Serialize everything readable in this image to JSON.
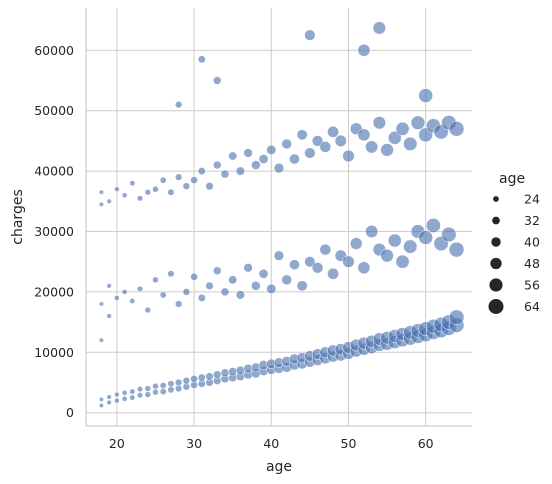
{
  "chart_data": {
    "type": "scatter",
    "title": "",
    "xlabel": "age",
    "ylabel": "charges",
    "xlim": [
      16,
      66
    ],
    "ylim": [
      -2200,
      67000
    ],
    "xticks": [
      20,
      30,
      40,
      50,
      60
    ],
    "yticks": [
      0,
      10000,
      20000,
      30000,
      40000,
      50000,
      60000
    ],
    "grid": true,
    "legend_placement": "right",
    "legend": {
      "title": "age",
      "entries": [
        24,
        32,
        40,
        48,
        56,
        64
      ]
    },
    "size_variable": "age",
    "color": "#4c72b0",
    "series": [
      {
        "x": [
          18,
          18,
          19,
          19,
          20,
          20,
          21,
          21,
          22,
          22,
          23,
          23,
          24,
          24,
          25,
          25,
          26,
          26,
          27,
          27,
          28,
          28,
          29,
          29,
          30,
          30,
          31,
          31,
          32,
          32,
          33,
          33,
          34,
          34,
          35,
          35,
          36,
          36,
          37,
          37,
          38,
          38,
          39,
          39,
          40,
          40,
          41,
          41,
          42,
          42,
          43,
          43,
          44,
          44,
          45,
          45,
          46,
          46,
          47,
          47,
          48,
          48,
          49,
          49,
          50,
          50,
          51,
          51,
          52,
          52,
          53,
          53,
          54,
          54,
          55,
          55,
          56,
          56,
          57,
          57,
          58,
          58,
          59,
          59,
          60,
          60,
          61,
          61,
          62,
          62,
          63,
          63,
          64,
          64
        ],
        "y": [
          1200,
          2200,
          1700,
          2600,
          2000,
          3000,
          2300,
          3300,
          2500,
          3500,
          2900,
          3900,
          3000,
          4000,
          3400,
          4400,
          3500,
          4500,
          3800,
          4800,
          4000,
          5000,
          4300,
          5300,
          4600,
          5600,
          4800,
          5800,
          5000,
          6000,
          5300,
          6300,
          5600,
          6600,
          5800,
          6800,
          6000,
          7000,
          6300,
          7300,
          6500,
          7500,
          6900,
          7900,
          7100,
          8100,
          7300,
          8300,
          7500,
          8500,
          7900,
          8900,
          8100,
          9100,
          8400,
          9400,
          8700,
          9700,
          9000,
          10000,
          9300,
          10300,
          9500,
          10500,
          9800,
          10800,
          10200,
          11200,
          10500,
          11500,
          10800,
          11800,
          11200,
          12200,
          11400,
          12400,
          11700,
          12700,
          12000,
          13000,
          12300,
          13300,
          12600,
          13600,
          12900,
          13900,
          13300,
          14300,
          13600,
          14600,
          14000,
          15000,
          14500,
          15800
        ]
      },
      {
        "x": [
          18,
          18,
          19,
          19,
          20,
          21,
          22,
          23,
          24,
          25,
          26,
          27,
          28,
          29,
          30,
          31,
          32,
          33,
          34,
          35,
          36,
          37,
          38,
          39,
          40,
          41,
          42,
          43,
          44,
          45,
          46,
          47,
          48,
          49,
          50,
          51,
          52,
          53,
          54,
          55,
          56,
          57,
          58,
          59,
          60,
          61,
          62,
          63,
          64
        ],
        "y": [
          12000,
          18000,
          16000,
          21000,
          19000,
          20000,
          18500,
          20500,
          17000,
          22000,
          19500,
          23000,
          18000,
          20000,
          22500,
          19000,
          21000,
          23500,
          20000,
          22000,
          19500,
          24000,
          21000,
          23000,
          20500,
          26000,
          22000,
          24500,
          21000,
          25000,
          24000,
          27000,
          23000,
          26000,
          25000,
          28000,
          24000,
          30000,
          27000,
          26000,
          28500,
          25000,
          27500,
          30000,
          29000,
          31000,
          28000,
          29500,
          27000
        ]
      },
      {
        "x": [
          18,
          18,
          19,
          20,
          21,
          22,
          23,
          24,
          25,
          26,
          27,
          28,
          29,
          30,
          31,
          32,
          33,
          34,
          35,
          36,
          37,
          38,
          39,
          40,
          41,
          42,
          43,
          44,
          45,
          46,
          47,
          48,
          49,
          50,
          51,
          52,
          53,
          54,
          55,
          56,
          57,
          58,
          59,
          60,
          61,
          62,
          63,
          64
        ],
        "y": [
          34500,
          36500,
          35000,
          37000,
          36000,
          38000,
          35500,
          36500,
          37000,
          38500,
          36500,
          39000,
          37500,
          38500,
          40000,
          37500,
          41000,
          39500,
          42500,
          40000,
          43000,
          41000,
          42000,
          43500,
          40500,
          44500,
          42000,
          46000,
          43000,
          45000,
          44000,
          46500,
          45000,
          42500,
          47000,
          46000,
          44000,
          48000,
          43500,
          45500,
          47000,
          44500,
          48000,
          46000,
          47500,
          46500,
          48000,
          47000
        ]
      }
    ],
    "outliers": {
      "x": [
        28,
        31,
        33,
        45,
        52,
        54,
        60
      ],
      "y": [
        51000,
        58500,
        55000,
        62500,
        60000,
        63700,
        52500
      ]
    }
  }
}
